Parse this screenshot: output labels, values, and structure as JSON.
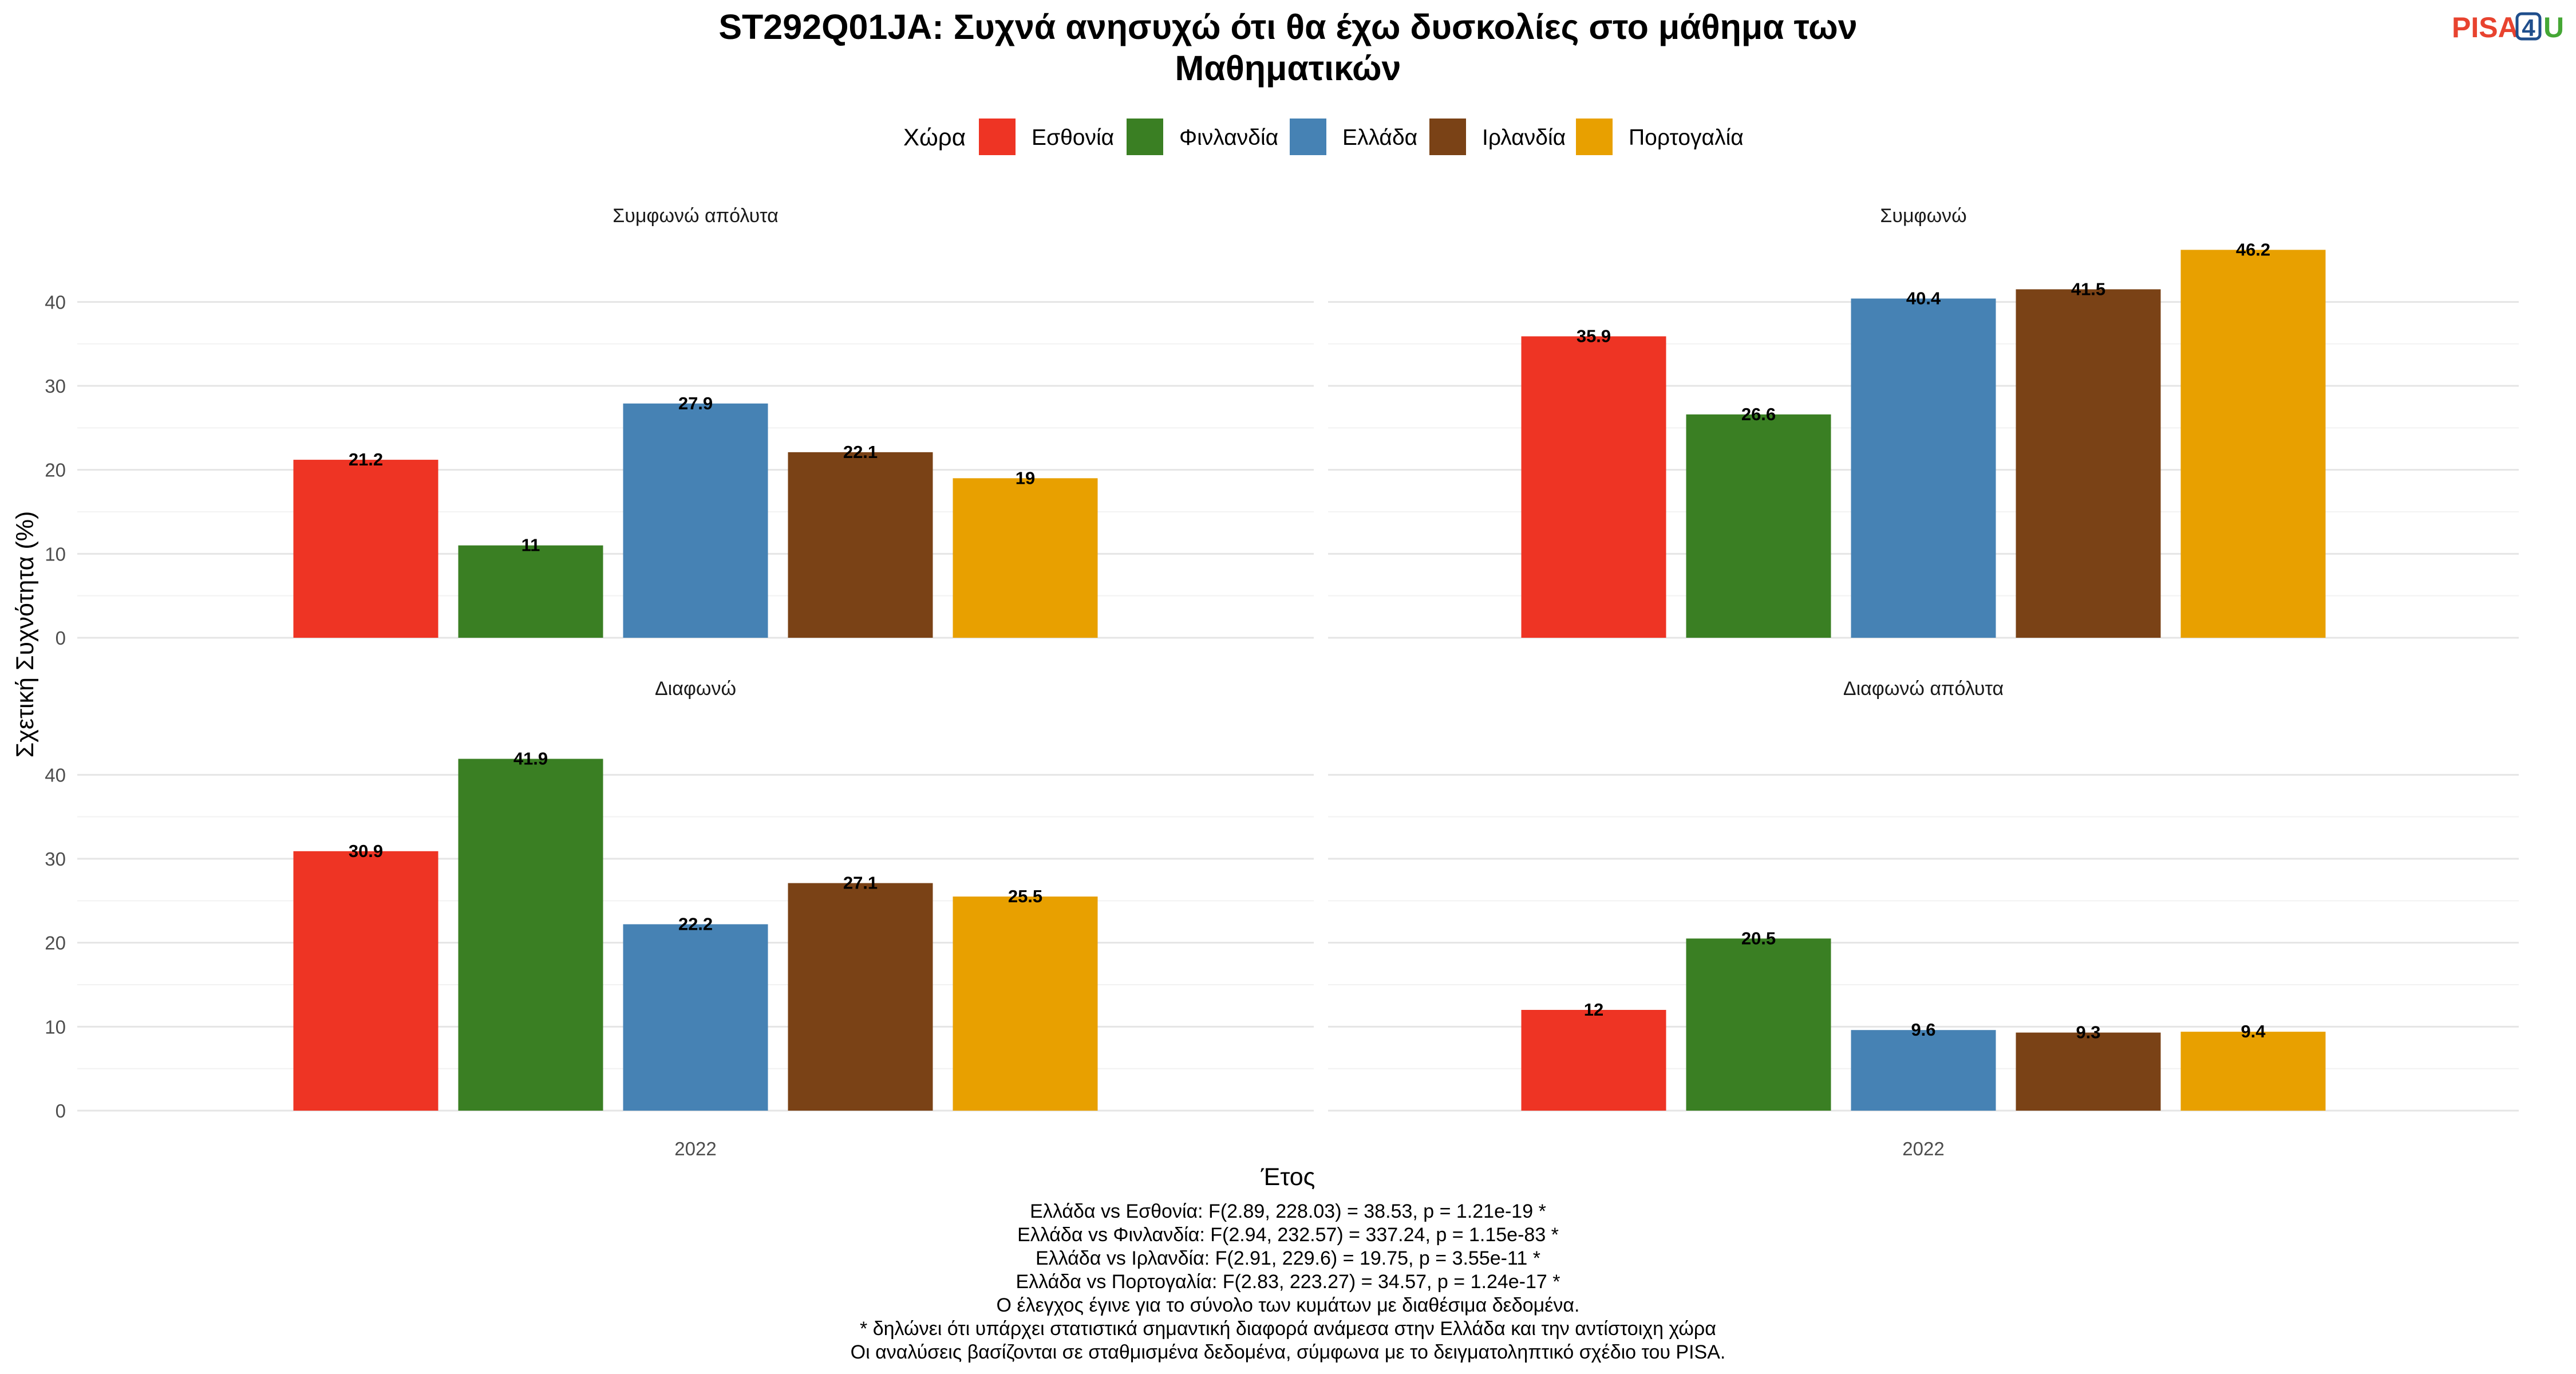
{
  "header": {
    "title_lines": [
      "ST292Q01JA: Συχνά ανησυχώ ότι θα έχω δυσκολίες στο μάθημα των",
      "Μαθηματικών"
    ],
    "logo": {
      "part1": "PISA",
      "part2": "4",
      "part3": "U"
    }
  },
  "legend": {
    "title": "Χώρα",
    "position": "top",
    "items": [
      {
        "name": "Εσθονία",
        "color": "#EE3424"
      },
      {
        "name": "Φινλανδία",
        "color": "#3A7F23"
      },
      {
        "name": "Ελλάδα",
        "color": "#4682B4"
      },
      {
        "name": "Ιρλανδία",
        "color": "#7A4216"
      },
      {
        "name": "Πορτογαλία",
        "color": "#E8A000"
      }
    ]
  },
  "chart_data": {
    "type": "bar",
    "xlabel": "Έτος",
    "ylabel": "Σχετική Συχνότητα (%)",
    "ylim": [
      0,
      48
    ],
    "yticks": [
      0,
      10,
      20,
      30,
      40
    ],
    "categories": [
      "2022"
    ],
    "grid": true,
    "facets": [
      {
        "label": "Συμφωνώ απόλυτα",
        "values": [
          21.2,
          11,
          27.9,
          22.1,
          19
        ]
      },
      {
        "label": "Συμφωνώ",
        "values": [
          35.9,
          26.6,
          40.4,
          41.5,
          46.2
        ]
      },
      {
        "label": "Διαφωνώ",
        "values": [
          30.9,
          41.9,
          22.2,
          27.1,
          25.5
        ]
      },
      {
        "label": "Διαφωνώ απόλυτα",
        "values": [
          12,
          20.5,
          9.6,
          9.3,
          9.4
        ]
      }
    ],
    "value_labels": [
      [
        "21.2",
        "11",
        "27.9",
        "22.1",
        "19"
      ],
      [
        "35.9",
        "26.6",
        "40.4",
        "41.5",
        "46.2"
      ],
      [
        "30.9",
        "41.9",
        "22.2",
        "27.1",
        "25.5"
      ],
      [
        "12",
        "20.5",
        "9.6",
        "9.3",
        "9.4"
      ]
    ]
  },
  "caption": {
    "lines": [
      "Ελλάδα vs Εσθονία: F(2.89, 228.03) = 38.53, p = 1.21e-19 *",
      "Ελλάδα vs Φινλανδία: F(2.94, 232.57) = 337.24, p = 1.15e-83 *",
      "Ελλάδα vs Ιρλανδία: F(2.91, 229.6) = 19.75, p = 3.55e-11 *",
      "Ελλάδα vs Πορτογαλία: F(2.83, 223.27) = 34.57, p = 1.24e-17 *",
      "Ο έλεγχος έγινε για το σύνολο των κυμάτων με διαθέσιμα δεδομένα.",
      "* δηλώνει ότι υπάρχει στατιστικά σημαντική διαφορά ανάμεσα στην Ελλάδα και την αντίστοιχη χώρα",
      "Οι αναλύσεις βασίζονται σε σταθμισμένα δεδομένα, σύμφωνα με το δειγματοληπτικό σχέδιο του PISA."
    ]
  }
}
